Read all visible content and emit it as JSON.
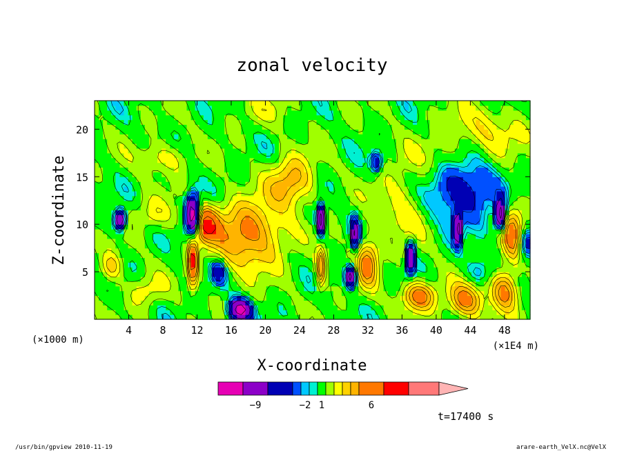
{
  "chart_data": {
    "type": "heatmap",
    "title": "zonal velocity",
    "xlabel": "X-coordinate",
    "ylabel": "Z-coordinate",
    "x_ticks": [
      "4",
      "8",
      "12",
      "16",
      "20",
      "24",
      "28",
      "32",
      "36",
      "40",
      "44",
      "48"
    ],
    "x_tick_values": [
      4,
      8,
      12,
      16,
      20,
      24,
      28,
      32,
      36,
      40,
      44,
      48
    ],
    "y_ticks": [
      "5",
      "10",
      "15",
      "20"
    ],
    "y_tick_values": [
      5,
      10,
      15,
      20
    ],
    "xlim": [
      0,
      51
    ],
    "ylim": [
      0,
      23
    ],
    "x_unit_left": "(×1000 m)",
    "x_unit_right": "(×1E4 m)",
    "time_label": "t=17400 s",
    "colorbar": {
      "colors": [
        "#e600b4",
        "#8c00c8",
        "#0000b4",
        "#0050ff",
        "#00c8ff",
        "#00f0d2",
        "#00ff00",
        "#a0ff00",
        "#ffff00",
        "#ffd200",
        "#ffb400",
        "#ff7800",
        "#ff0000",
        "#ff7878"
      ],
      "extend_color": "#ffb4b4",
      "labels": [
        "−9",
        "−2",
        "1",
        "6"
      ]
    },
    "cores": [
      {
        "x": 3.0,
        "z": 10.5,
        "v": -9,
        "sx": 0.6,
        "sz": 1.0
      },
      {
        "x": 11.5,
        "z": 11.0,
        "v": -13,
        "sx": 0.7,
        "sz": 2.0
      },
      {
        "x": 11.5,
        "z": 6.0,
        "v": 8,
        "sx": 0.5,
        "sz": 2.5
      },
      {
        "x": 13.0,
        "z": 10.0,
        "v": 6,
        "sx": 1.5,
        "sz": 1.8
      },
      {
        "x": 18.0,
        "z": 9.0,
        "v": 5,
        "sx": 4.0,
        "sz": 3.5
      },
      {
        "x": 23.0,
        "z": 14.5,
        "v": 4,
        "sx": 2.5,
        "sz": 2.5
      },
      {
        "x": 17.0,
        "z": 1.0,
        "v": -11,
        "sx": 1.2,
        "sz": 1.0
      },
      {
        "x": 14.5,
        "z": 5.0,
        "v": -4,
        "sx": 0.8,
        "sz": 1.2
      },
      {
        "x": 26.5,
        "z": 10.5,
        "v": -11,
        "sx": 0.4,
        "sz": 1.5
      },
      {
        "x": 26.5,
        "z": 5.5,
        "v": 6,
        "sx": 0.5,
        "sz": 2.0
      },
      {
        "x": 30.0,
        "z": 4.5,
        "v": -11,
        "sx": 0.5,
        "sz": 1.0
      },
      {
        "x": 30.5,
        "z": 9.0,
        "v": -9,
        "sx": 0.4,
        "sz": 1.5
      },
      {
        "x": 32.0,
        "z": 6.0,
        "v": 5,
        "sx": 1.2,
        "sz": 2.5
      },
      {
        "x": 33.0,
        "z": 16.5,
        "v": -5,
        "sx": 0.6,
        "sz": 1.0
      },
      {
        "x": 37.0,
        "z": 6.5,
        "v": -11,
        "sx": 0.4,
        "sz": 1.5
      },
      {
        "x": 38.0,
        "z": 2.5,
        "v": 5,
        "sx": 2.0,
        "sz": 1.5
      },
      {
        "x": 42.5,
        "z": 9.5,
        "v": -11,
        "sx": 0.4,
        "sz": 1.5
      },
      {
        "x": 43.5,
        "z": 2.0,
        "v": 5,
        "sx": 2.0,
        "sz": 1.8
      },
      {
        "x": 47.5,
        "z": 11.0,
        "v": -11,
        "sx": 0.5,
        "sz": 1.5
      },
      {
        "x": 49.0,
        "z": 9.0,
        "v": 5,
        "sx": 1.2,
        "sz": 3.0
      },
      {
        "x": 48.0,
        "z": 3.0,
        "v": 5,
        "sx": 1.5,
        "sz": 2.0
      },
      {
        "x": 43.0,
        "z": 13.5,
        "v": -4,
        "sx": 4.0,
        "sz": 3.0
      },
      {
        "x": 50.5,
        "z": 8.0,
        "v": -4,
        "sx": 1.0,
        "sz": 1.5
      },
      {
        "x": 8.0,
        "z": 17.0,
        "v": 2,
        "sx": 3.0,
        "sz": 1.5
      },
      {
        "x": 46.0,
        "z": 20.0,
        "v": 2,
        "sx": 5.0,
        "sz": 2.5
      },
      {
        "x": 36.0,
        "z": 12.0,
        "v": 2,
        "sx": 3.0,
        "sz": 4.0
      },
      {
        "x": 2.0,
        "z": 5.5,
        "v": 3,
        "sx": 1.2,
        "sz": 1.5
      },
      {
        "x": 6.0,
        "z": 3.0,
        "v": 2,
        "sx": 2.0,
        "sz": 1.5
      },
      {
        "x": 40.0,
        "z": 17.0,
        "v": 1,
        "sx": 3.0,
        "sz": 2.0
      },
      {
        "x": 20.0,
        "z": 22.0,
        "v": 1,
        "sx": 4.0,
        "sz": 1.5
      },
      {
        "x": 45.0,
        "z": 5.0,
        "v": -2,
        "sx": 1.5,
        "sz": 1.5
      },
      {
        "x": 7.0,
        "z": 11.0,
        "v": 2,
        "sx": 2.5,
        "sz": 1.5
      }
    ]
  },
  "footer": {
    "left": "/usr/bin/gpview   2010-11-19",
    "right": "arare-earth_VelX.nc@VelX"
  }
}
